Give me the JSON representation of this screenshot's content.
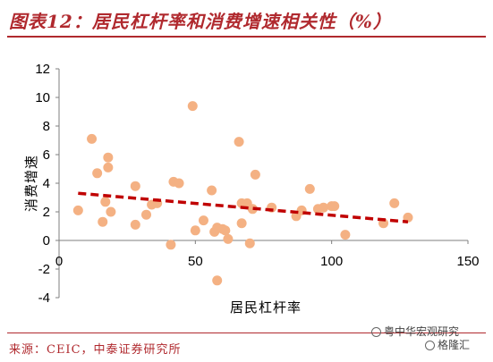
{
  "header": {
    "title": "图表12：居民杠杆率和消费增速相关性（%）"
  },
  "footer": {
    "source": "来源：CEIC，中泰证券研究所"
  },
  "watermark": {
    "line1": "粤中华宏观研究",
    "line2": "格隆汇"
  },
  "chart_data": {
    "type": "scatter",
    "title": "",
    "xlabel": "居民杠杆率",
    "ylabel": "消费增速",
    "xlim": [
      0,
      150
    ],
    "ylim": [
      -4,
      12
    ],
    "x_ticks": [
      0,
      50,
      100,
      150
    ],
    "y_ticks": [
      -4,
      -2,
      0,
      2,
      4,
      6,
      8,
      10,
      12
    ],
    "x_tick_labels": [
      "0",
      "50",
      "100",
      "150"
    ],
    "y_tick_labels": [
      "-4",
      "-2",
      "0",
      "2",
      "4",
      "6",
      "8",
      "10",
      "12"
    ],
    "grid": false,
    "legend": "none",
    "series": [
      {
        "type": "scatter",
        "color": "#f4b183",
        "points": [
          [
            7,
            2.1
          ],
          [
            12,
            7.1
          ],
          [
            14,
            4.7
          ],
          [
            16,
            1.3
          ],
          [
            17,
            2.7
          ],
          [
            18,
            5.8
          ],
          [
            18,
            5.1
          ],
          [
            19,
            2.0
          ],
          [
            28,
            3.8
          ],
          [
            28,
            1.1
          ],
          [
            32,
            1.8
          ],
          [
            34,
            2.5
          ],
          [
            36,
            2.6
          ],
          [
            41,
            -0.3
          ],
          [
            42,
            4.1
          ],
          [
            44,
            4.0
          ],
          [
            49,
            9.4
          ],
          [
            50,
            0.7
          ],
          [
            53,
            1.4
          ],
          [
            56,
            3.5
          ],
          [
            57,
            0.6
          ],
          [
            58,
            0.9
          ],
          [
            58,
            -2.8
          ],
          [
            60,
            0.8
          ],
          [
            61,
            0.7
          ],
          [
            62,
            0.1
          ],
          [
            66,
            6.9
          ],
          [
            67,
            2.6
          ],
          [
            67,
            1.2
          ],
          [
            69,
            2.6
          ],
          [
            70,
            -0.2
          ],
          [
            71,
            2.2
          ],
          [
            72,
            4.6
          ],
          [
            78,
            2.3
          ],
          [
            87,
            1.7
          ],
          [
            89,
            2.1
          ],
          [
            92,
            3.6
          ],
          [
            95,
            2.2
          ],
          [
            97,
            2.3
          ],
          [
            100,
            2.4
          ],
          [
            101,
            2.4
          ],
          [
            105,
            0.4
          ],
          [
            119,
            1.2
          ],
          [
            123,
            2.6
          ],
          [
            128,
            1.6
          ]
        ]
      },
      {
        "type": "trendline",
        "color": "#c00000",
        "points": [
          [
            7,
            3.3
          ],
          [
            128,
            1.3
          ]
        ]
      }
    ]
  }
}
